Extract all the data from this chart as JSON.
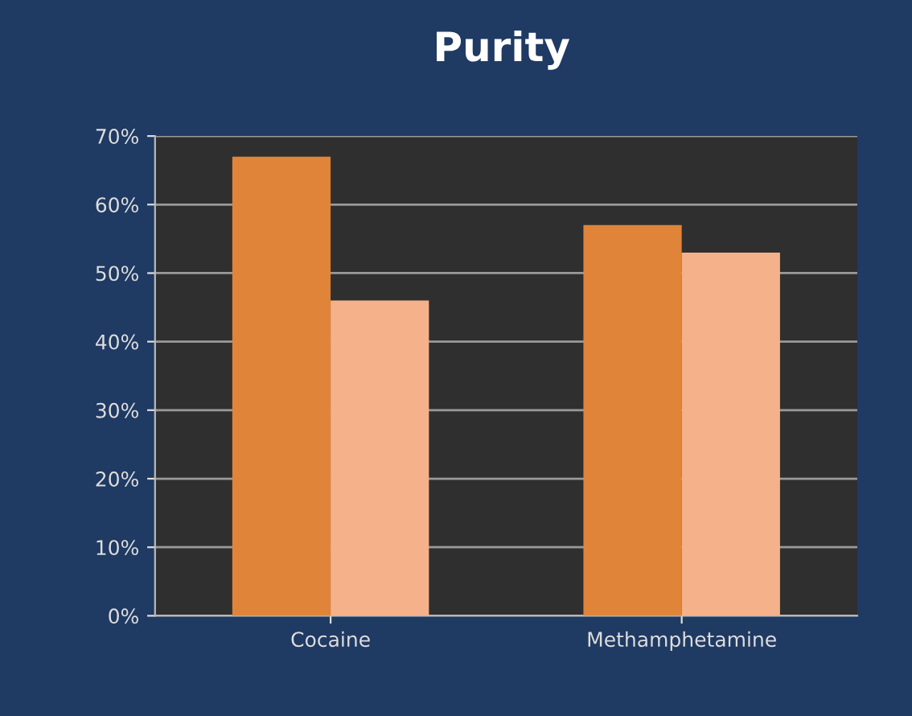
{
  "chart_data": {
    "type": "bar",
    "title": "Purity",
    "categories": [
      "Cocaine",
      "Methamphetamine"
    ],
    "series": [
      {
        "color": "#e0843a",
        "values": [
          67,
          57
        ]
      },
      {
        "color": "#f4b18a",
        "values": [
          46,
          53
        ]
      }
    ],
    "ylim": [
      0,
      70
    ],
    "yticks": [
      {
        "value": 0,
        "label": "0%"
      },
      {
        "value": 10,
        "label": "10%"
      },
      {
        "value": 20,
        "label": "20%"
      },
      {
        "value": 30,
        "label": "30%"
      },
      {
        "value": 40,
        "label": "40%"
      },
      {
        "value": 50,
        "label": "50%"
      },
      {
        "value": 60,
        "label": "60%"
      },
      {
        "value": 70,
        "label": "70%"
      }
    ],
    "grid": "y",
    "legend": false
  }
}
